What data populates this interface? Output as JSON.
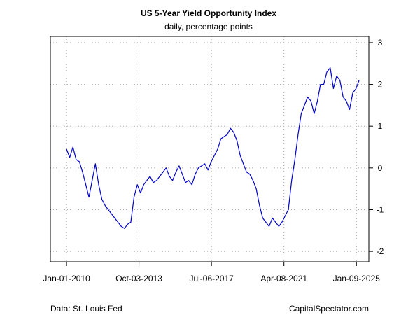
{
  "chart_data": {
    "type": "line",
    "title": "US 5-Year Yield Opportunity Index",
    "subtitle": "daily, percentage points",
    "xlabel": "",
    "ylabel": "",
    "x_tick_labels": [
      "Jan-01-2010",
      "Oct-03-2013",
      "Jul-06-2017",
      "Apr-08-2021",
      "Jan-09-2025"
    ],
    "x_ticks": [
      "2010-01-01",
      "2013-10-03",
      "2017-07-06",
      "2021-04-08",
      "2025-01-09"
    ],
    "xlim": [
      "2009-03-01",
      "2025-09-01"
    ],
    "y_tick_labels": [
      "-2",
      "-1",
      "0",
      "1",
      "2",
      "3"
    ],
    "y_ticks": [
      -2,
      -1,
      0,
      1,
      2,
      3
    ],
    "ylim": [
      -2.25,
      3.15
    ],
    "y_axis_side": "right",
    "grid": true,
    "line_color": "#0000cc",
    "series": [
      {
        "x": [
          "2010-01-01",
          "2010-03-01",
          "2010-05-01",
          "2010-07-01",
          "2010-09-01",
          "2010-11-01",
          "2011-01-01",
          "2011-03-01",
          "2011-05-01",
          "2011-07-01",
          "2011-09-01",
          "2011-11-01",
          "2012-01-01",
          "2012-03-01",
          "2012-05-01",
          "2012-07-01",
          "2012-09-01",
          "2012-11-01",
          "2013-01-01",
          "2013-03-01",
          "2013-05-01",
          "2013-07-01",
          "2013-09-01",
          "2013-11-01",
          "2014-01-01",
          "2014-03-01",
          "2014-05-01",
          "2014-07-01",
          "2014-09-01",
          "2014-11-01",
          "2015-01-01",
          "2015-03-01",
          "2015-05-01",
          "2015-07-01",
          "2015-09-01",
          "2015-11-01",
          "2016-01-01",
          "2016-03-01",
          "2016-05-01",
          "2016-07-01",
          "2016-09-01",
          "2016-11-01",
          "2017-01-01",
          "2017-03-01",
          "2017-05-01",
          "2017-07-01",
          "2017-09-01",
          "2017-11-01",
          "2018-01-01",
          "2018-03-01",
          "2018-05-01",
          "2018-07-01",
          "2018-09-01",
          "2018-11-01",
          "2019-01-01",
          "2019-03-01",
          "2019-05-01",
          "2019-07-01",
          "2019-09-01",
          "2019-11-01",
          "2020-01-01",
          "2020-03-01",
          "2020-05-01",
          "2020-07-01",
          "2020-09-01",
          "2020-11-01",
          "2021-01-01",
          "2021-03-01",
          "2021-05-01",
          "2021-07-01",
          "2021-09-01",
          "2021-11-01",
          "2022-01-01",
          "2022-03-01",
          "2022-05-01",
          "2022-07-01",
          "2022-09-01",
          "2022-11-01",
          "2023-01-01",
          "2023-03-01",
          "2023-05-01",
          "2023-07-01",
          "2023-09-01",
          "2023-11-01",
          "2024-01-01",
          "2024-03-01",
          "2024-05-01",
          "2024-07-01",
          "2024-09-01",
          "2024-11-01",
          "2025-01-01",
          "2025-03-01"
        ],
        "values": [
          0.45,
          0.25,
          0.5,
          0.2,
          0.15,
          -0.1,
          -0.4,
          -0.7,
          -0.3,
          0.1,
          -0.4,
          -0.75,
          -0.9,
          -1.0,
          -1.1,
          -1.2,
          -1.3,
          -1.4,
          -1.45,
          -1.35,
          -1.3,
          -0.7,
          -0.4,
          -0.6,
          -0.4,
          -0.3,
          -0.2,
          -0.35,
          -0.3,
          -0.2,
          -0.1,
          0.0,
          -0.2,
          -0.3,
          -0.1,
          0.05,
          -0.15,
          -0.35,
          -0.3,
          -0.4,
          -0.15,
          0.0,
          0.05,
          0.1,
          -0.05,
          0.15,
          0.3,
          0.45,
          0.7,
          0.75,
          0.8,
          0.95,
          0.85,
          0.65,
          0.3,
          0.1,
          -0.1,
          -0.15,
          -0.3,
          -0.5,
          -0.9,
          -1.2,
          -1.3,
          -1.4,
          -1.2,
          -1.3,
          -1.4,
          -1.3,
          -1.15,
          -1.0,
          -0.3,
          0.2,
          0.8,
          1.3,
          1.5,
          1.7,
          1.6,
          1.3,
          1.6,
          2.0,
          2.0,
          2.3,
          2.4,
          1.9,
          2.2,
          2.1,
          1.7,
          1.6,
          1.4,
          1.8,
          1.9,
          2.1
        ]
      }
    ]
  },
  "footer": {
    "source": "Data: St. Louis Fed",
    "site": "CapitalSpectator.com"
  }
}
